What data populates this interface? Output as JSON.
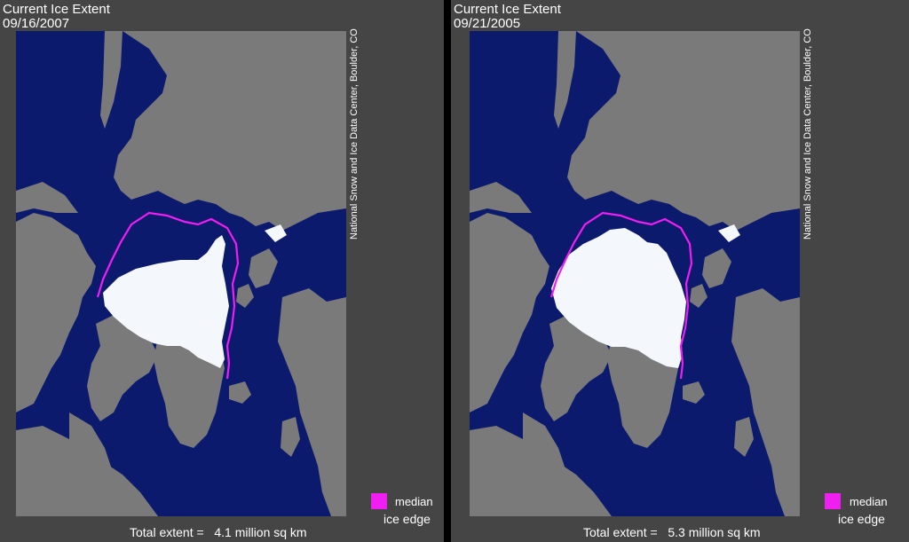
{
  "colors": {
    "background": "#454545",
    "ocean": "#0c1a6e",
    "land": "#7a7a7a",
    "sea_ice": "#f4f8fc",
    "median_ice_edge": "#f01ef0"
  },
  "panels": [
    {
      "title": "Current Ice Extent",
      "date": "09/16/2007",
      "credit": "National Snow and Ice Data Center, Boulder, CO",
      "legend_label_1": "median",
      "legend_label_2": "ice edge",
      "extent_label": "Total extent =",
      "extent_value": "4.1 million sq km"
    },
    {
      "title": "Current Ice Extent",
      "date": "09/21/2005",
      "credit": "National Snow and Ice Data Center, Boulder, CO",
      "legend_label_1": "median",
      "legend_label_2": "ice edge",
      "extent_label": "Total extent =",
      "extent_value": "5.3 million sq km"
    }
  ]
}
